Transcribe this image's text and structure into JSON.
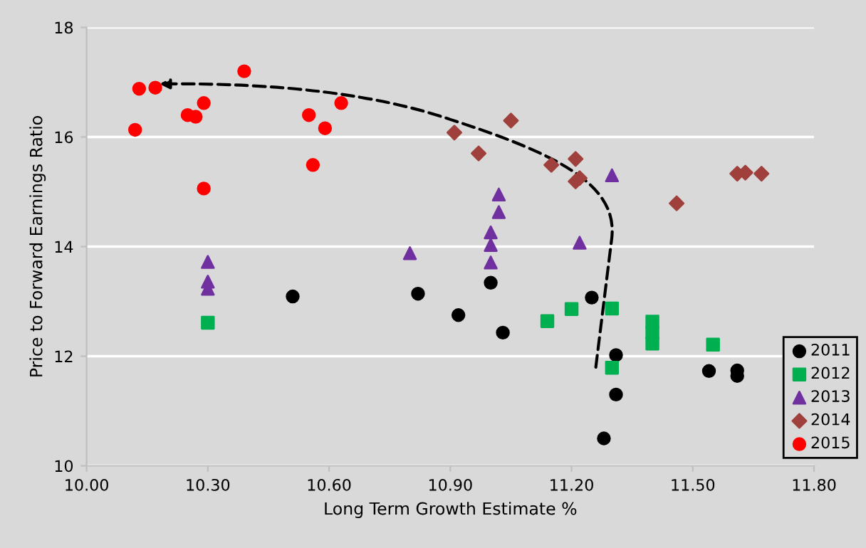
{
  "chart_data": {
    "type": "scatter",
    "xlabel": "Long Term Growth Estimate %",
    "ylabel": "Price to Forward Earnings Ratio",
    "xlim": [
      10.0,
      11.8
    ],
    "ylim": [
      10,
      18
    ],
    "xticks": [
      {
        "value": 10.0,
        "label": "10.00"
      },
      {
        "value": 10.3,
        "label": "10.30"
      },
      {
        "value": 10.6,
        "label": "10.60"
      },
      {
        "value": 10.9,
        "label": "10.90"
      },
      {
        "value": 11.2,
        "label": "11.20"
      },
      {
        "value": 11.5,
        "label": "11.50"
      },
      {
        "value": 11.8,
        "label": "11.80"
      }
    ],
    "yticks": [
      10,
      12,
      14,
      16,
      18
    ],
    "grid": "y",
    "legend": "bottom right",
    "series": [
      {
        "name": "2011",
        "color": "#000000",
        "marker": "circle",
        "x": [
          10.51,
          10.82,
          10.92,
          11.0,
          11.03,
          11.25,
          11.31,
          11.31,
          11.28,
          11.54,
          11.61,
          11.61
        ],
        "values": [
          13.09,
          13.14,
          12.75,
          13.34,
          12.43,
          13.07,
          12.02,
          11.3,
          10.5,
          11.73,
          11.74,
          11.64
        ]
      },
      {
        "name": "2012",
        "color": "#00b050",
        "marker": "square",
        "x": [
          10.3,
          11.14,
          11.2,
          11.3,
          11.3,
          11.4,
          11.4,
          11.4,
          11.55
        ],
        "values": [
          12.61,
          12.64,
          12.86,
          12.87,
          11.79,
          12.63,
          12.43,
          12.23,
          12.21
        ]
      },
      {
        "name": "2013",
        "color": "#7030a0",
        "marker": "triangle",
        "x": [
          10.3,
          10.3,
          10.3,
          10.8,
          11.02,
          11.02,
          11.0,
          11.0,
          11.0,
          11.3,
          11.22
        ],
        "values": [
          13.72,
          13.36,
          13.23,
          13.88,
          14.95,
          14.63,
          14.26,
          14.03,
          13.71,
          15.3,
          14.07
        ]
      },
      {
        "name": "2014",
        "color": "#a0403c",
        "marker": "diamond",
        "x": [
          10.91,
          11.05,
          10.97,
          11.21,
          11.15,
          11.21,
          11.22,
          11.46,
          11.61,
          11.63,
          11.67
        ],
        "values": [
          16.08,
          16.3,
          15.7,
          15.6,
          15.49,
          15.19,
          15.25,
          14.79,
          15.33,
          15.35,
          15.33
        ]
      },
      {
        "name": "2015",
        "color": "#ff0000",
        "marker": "circle",
        "x": [
          10.13,
          10.17,
          10.12,
          10.25,
          10.27,
          10.29,
          10.29,
          10.39,
          10.55,
          10.63,
          10.59,
          10.56
        ],
        "values": [
          16.88,
          16.9,
          16.13,
          16.4,
          16.37,
          16.62,
          15.06,
          17.2,
          16.4,
          16.62,
          16.16,
          15.49
        ]
      }
    ]
  }
}
